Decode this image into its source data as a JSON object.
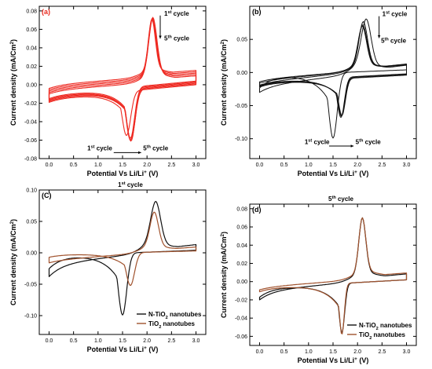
{
  "chart_data": [
    {
      "type": "line",
      "panel_label": "(a)",
      "panel_label_color": "#e8281e",
      "xlabel": "Potential Vs Li/Li+ (V)",
      "ylabel": "Current density (mA/Cm2)",
      "xlim": [
        -0.2,
        3.2
      ],
      "ylim": [
        -0.08,
        0.085
      ],
      "xticks": [
        0.0,
        0.5,
        1.0,
        1.5,
        2.0,
        2.5,
        3.0
      ],
      "yticks": [
        -0.08,
        -0.06,
        -0.04,
        -0.02,
        0.0,
        0.02,
        0.04,
        0.06,
        0.08
      ],
      "tick_labels_x": [
        "0.0",
        "0.5",
        "1.0",
        "1.5",
        "2.0",
        "2.5",
        "3.0"
      ],
      "tick_labels_y": [
        "-0.08",
        "-0.06",
        "-0.04",
        "-0.02",
        "0.00",
        "0.02",
        "0.04",
        "0.06",
        "0.08"
      ],
      "annotations": [
        "1st cycle",
        "5th cycle",
        "1st cycle",
        "5th cycle"
      ],
      "series": [
        {
          "color": "#ee2a22",
          "anodic_peak": [
            2.12,
            0.073
          ],
          "cathodic_peak": [
            1.66,
            -0.058
          ]
        },
        {
          "color": "#ee2a22",
          "anodic_peak": [
            2.12,
            0.072
          ],
          "cathodic_peak": [
            1.66,
            -0.06
          ]
        },
        {
          "color": "#ee2a22",
          "anodic_peak": [
            2.11,
            0.072
          ],
          "cathodic_peak": [
            1.67,
            -0.061
          ]
        },
        {
          "color": "#ee2a22",
          "anodic_peak": [
            2.11,
            0.071
          ],
          "cathodic_peak": [
            1.67,
            -0.061
          ]
        },
        {
          "color": "#ee2a22",
          "anodic_peak": [
            2.1,
            0.071
          ],
          "cathodic_peak": [
            1.58,
            -0.055
          ]
        }
      ]
    },
    {
      "type": "line",
      "panel_label": "(b)",
      "panel_label_color": "#000000",
      "xlabel": "Potential Vs Li/Li+ (V)",
      "ylabel": "Current density (mA/Cm2)",
      "xlim": [
        -0.2,
        3.2
      ],
      "ylim": [
        -0.13,
        0.1
      ],
      "xticks": [
        0.0,
        0.5,
        1.0,
        1.5,
        2.0,
        2.5,
        3.0
      ],
      "yticks": [
        -0.1,
        -0.05,
        0.0,
        0.05
      ],
      "tick_labels_x": [
        "0.0",
        "0.5",
        "1.0",
        "1.5",
        "2.0",
        "2.5",
        "3.0"
      ],
      "tick_labels_y": [
        "-0.10",
        "-0.05",
        "0.00",
        "0.05"
      ],
      "annotations": [
        "1st cycle",
        "5th cycle",
        "1st cycle",
        "5th cycle"
      ],
      "series": [
        {
          "color": "#111111",
          "anodic_peak": [
            2.18,
            0.081
          ],
          "cathodic_peak": [
            1.5,
            -0.099
          ]
        },
        {
          "color": "#111111",
          "anodic_peak": [
            2.12,
            0.077
          ],
          "cathodic_peak": [
            1.66,
            -0.068
          ]
        },
        {
          "color": "#111111",
          "anodic_peak": [
            2.11,
            0.072
          ],
          "cathodic_peak": [
            1.67,
            -0.066
          ]
        },
        {
          "color": "#111111",
          "anodic_peak": [
            2.1,
            0.07
          ],
          "cathodic_peak": [
            1.68,
            -0.065
          ]
        }
      ]
    },
    {
      "type": "line",
      "panel_label": "(C)",
      "panel_label_color": "#000000",
      "title": "1st cycle",
      "xlabel": "Potential Vs Li/Li+ (V)",
      "ylabel": "Current density (mA/Cm2)",
      "xlim": [
        -0.2,
        3.2
      ],
      "ylim": [
        -0.13,
        0.1
      ],
      "xticks": [
        0.0,
        0.5,
        1.0,
        1.5,
        2.0,
        2.5,
        3.0
      ],
      "yticks": [
        -0.1,
        -0.05,
        0.0,
        0.05,
        0.1
      ],
      "tick_labels_x": [
        "0.0",
        "0.5",
        "1.0",
        "1.5",
        "2.0",
        "2.5",
        "3.0"
      ],
      "tick_labels_y": [
        "-0.10",
        "-0.05",
        "0.00",
        "0.05",
        "0.10"
      ],
      "legend_position": "bottom-right",
      "series": [
        {
          "name": "N-TiO2 nanotubes",
          "color": "#111111",
          "anodic_peak": [
            2.18,
            0.082
          ],
          "cathodic_peak": [
            1.5,
            -0.099
          ]
        },
        {
          "name": "TiO2 nanotubes",
          "color": "#a0522d",
          "anodic_peak": [
            2.15,
            0.065
          ],
          "cathodic_peak": [
            1.66,
            -0.052
          ]
        }
      ]
    },
    {
      "type": "line",
      "panel_label": "(d)",
      "panel_label_color": "#000000",
      "title": "5th cycle",
      "xlabel": "Potential Vs Li/Li+ (V)",
      "ylabel": "Current density (mA/Cm2)",
      "xlim": [
        -0.2,
        3.2
      ],
      "ylim": [
        -0.07,
        0.085
      ],
      "xticks": [
        0.0,
        0.5,
        1.0,
        1.5,
        2.0,
        2.5,
        3.0
      ],
      "yticks": [
        -0.06,
        -0.04,
        -0.02,
        0.0,
        0.02,
        0.04,
        0.06,
        0.08
      ],
      "tick_labels_x": [
        "0.0",
        "0.5",
        "1.0",
        "1.5",
        "2.0",
        "2.5",
        "3.0"
      ],
      "tick_labels_y": [
        "-0.06",
        "-0.04",
        "-0.02",
        "0.00",
        "0.02",
        "0.04",
        "0.06",
        "0.08"
      ],
      "legend_position": "bottom-right",
      "series": [
        {
          "name": "N-TiO2 nanotubes",
          "color": "#111111",
          "anodic_peak": [
            2.1,
            0.07
          ],
          "cathodic_peak": [
            1.68,
            -0.056
          ]
        },
        {
          "name": "TiO2 nanotubes",
          "color": "#a0522d",
          "anodic_peak": [
            2.1,
            0.07
          ],
          "cathodic_peak": [
            1.68,
            -0.058
          ]
        }
      ]
    }
  ]
}
